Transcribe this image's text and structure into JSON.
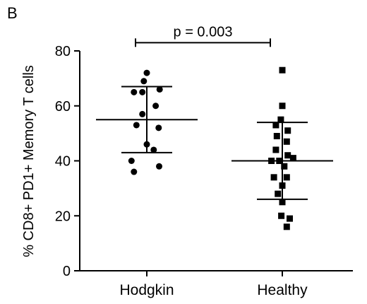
{
  "panel_label": "B",
  "chart_data": {
    "type": "scatter",
    "ylabel": "% CD8+ PD1+ Memory T cells",
    "xlabel": "",
    "categories": [
      "Hodgkin",
      "Healthy"
    ],
    "ylim": [
      0,
      80
    ],
    "yticks": [
      0,
      20,
      40,
      60,
      80
    ],
    "grid": false,
    "groups": [
      {
        "category": "Hodgkin",
        "marker": "circle",
        "mean": 55,
        "sd_low": 43,
        "sd_high": 67,
        "points": [
          {
            "value": 72,
            "jitter": 0.0
          },
          {
            "value": 69,
            "jitter": -0.06
          },
          {
            "value": 66,
            "jitter": 0.26
          },
          {
            "value": 65,
            "jitter": -0.26
          },
          {
            "value": 65,
            "jitter": -0.09
          },
          {
            "value": 60,
            "jitter": 0.18
          },
          {
            "value": 57,
            "jitter": -0.09
          },
          {
            "value": 53,
            "jitter": -0.21
          },
          {
            "value": 52,
            "jitter": 0.24
          },
          {
            "value": 46,
            "jitter": 0.0
          },
          {
            "value": 44,
            "jitter": 0.14
          },
          {
            "value": 40,
            "jitter": -0.31
          },
          {
            "value": 38,
            "jitter": 0.25
          },
          {
            "value": 36,
            "jitter": -0.26
          }
        ]
      },
      {
        "category": "Healthy",
        "marker": "square",
        "mean": 40,
        "sd_low": 26,
        "sd_high": 54,
        "points": [
          {
            "value": 73,
            "jitter": 0.0
          },
          {
            "value": 60,
            "jitter": 0.0
          },
          {
            "value": 55,
            "jitter": -0.03
          },
          {
            "value": 53,
            "jitter": -0.13
          },
          {
            "value": 51,
            "jitter": 0.11
          },
          {
            "value": 49,
            "jitter": -0.11
          },
          {
            "value": 47,
            "jitter": 0.09
          },
          {
            "value": 44,
            "jitter": -0.13
          },
          {
            "value": 42,
            "jitter": 0.11
          },
          {
            "value": 41,
            "jitter": 0.22
          },
          {
            "value": 40,
            "jitter": -0.22
          },
          {
            "value": 40,
            "jitter": -0.06
          },
          {
            "value": 38,
            "jitter": 0.04
          },
          {
            "value": 34,
            "jitter": -0.17
          },
          {
            "value": 34,
            "jitter": 0.09
          },
          {
            "value": 31,
            "jitter": 0.0
          },
          {
            "value": 28,
            "jitter": -0.09
          },
          {
            "value": 25,
            "jitter": 0.0
          },
          {
            "value": 20,
            "jitter": -0.02
          },
          {
            "value": 19,
            "jitter": 0.15
          },
          {
            "value": 16,
            "jitter": 0.09
          }
        ]
      }
    ],
    "annotation": {
      "text": "p = 0.003",
      "y": 83
    }
  }
}
